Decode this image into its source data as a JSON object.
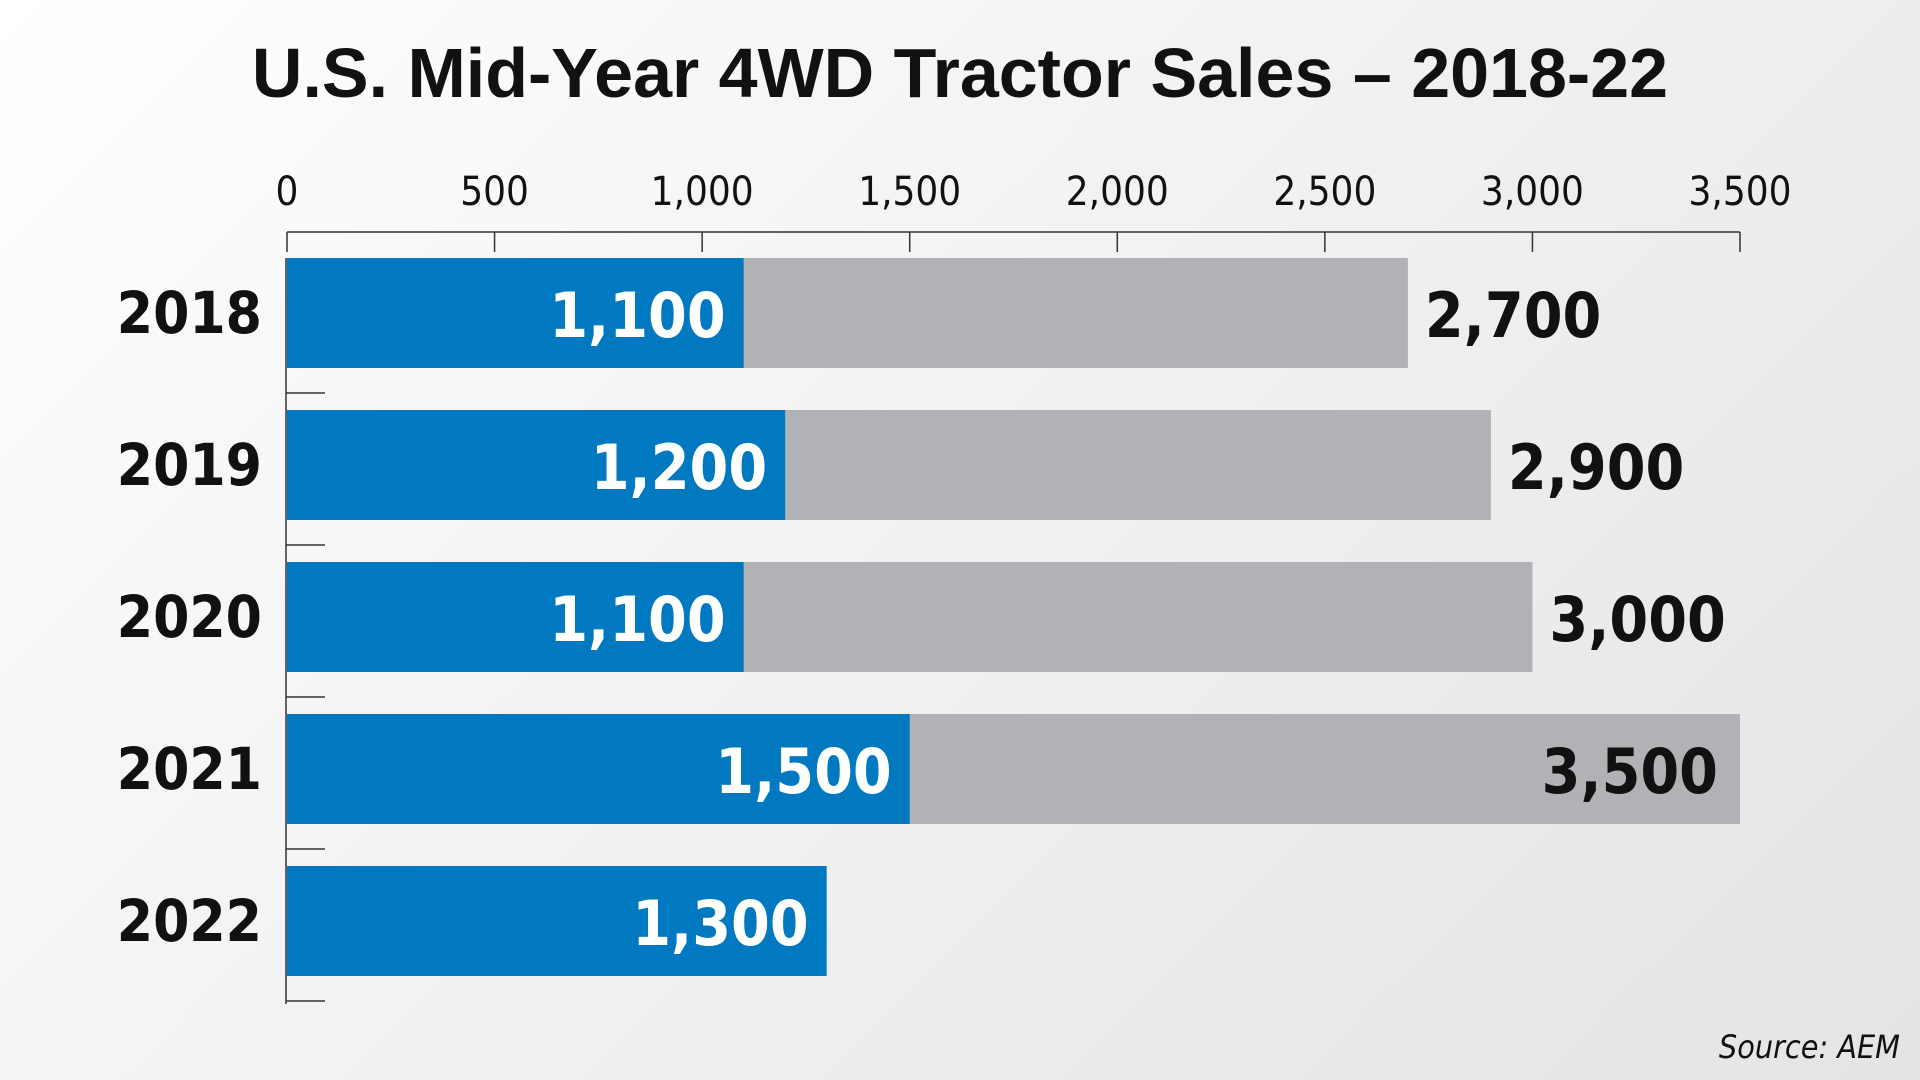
{
  "title": "U.S. Mid-Year 4WD Tractor Sales – 2018-22",
  "source": "Source: AEM",
  "colors": {
    "mid_year": "#0079c1",
    "full_year": "#b1b2b5",
    "text": "#111111",
    "inner_text": "#ffffff"
  },
  "chart_data": {
    "type": "bar",
    "orientation": "horizontal",
    "title": "U.S. Mid-Year 4WD Tractor Sales – 2018-22",
    "categories": [
      "2018",
      "2019",
      "2020",
      "2021",
      "2022"
    ],
    "series": [
      {
        "values": [
          1100,
          1200,
          1100,
          1500,
          1300
        ],
        "labels": [
          "1,100",
          "1,200",
          "1,100",
          "1,500",
          "1,300"
        ]
      },
      {
        "values": [
          2700,
          2900,
          3000,
          3500,
          null
        ],
        "labels": [
          "2,700",
          "2,900",
          "3,000",
          "3,500",
          ""
        ]
      }
    ],
    "xlim": [
      0,
      3500
    ],
    "ticks": [
      0,
      500,
      1000,
      1500,
      2000,
      2500,
      3000,
      3500
    ],
    "tick_labels": [
      "0",
      "500",
      "1,000",
      "1,500",
      "2,000",
      "2,500",
      "3,000",
      "3,500"
    ],
    "axis_position": "top",
    "grid": false,
    "legend": "none"
  }
}
